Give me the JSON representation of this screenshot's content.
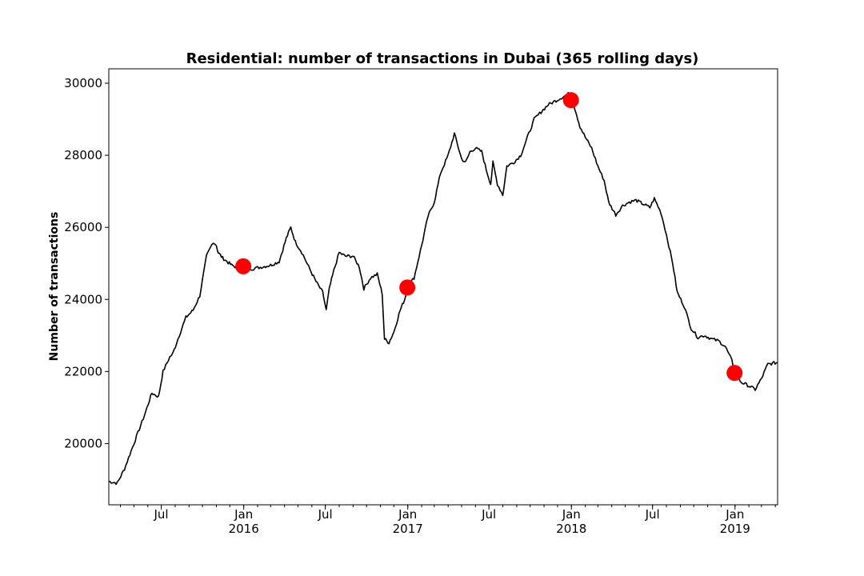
{
  "chart_data": {
    "type": "line",
    "title": "Residential: number of transactions in Dubai (365 rolling days)",
    "xlabel": "",
    "ylabel": "Number of transactions",
    "xlim": [
      "2015-03-06",
      "2019-04-06"
    ],
    "ylim": [
      18300,
      30400
    ],
    "grid": false,
    "yticks": [
      20000,
      22000,
      24000,
      26000,
      28000,
      30000
    ],
    "xticks": [
      {
        "date": "2015-07-01",
        "label": "Jul",
        "year": ""
      },
      {
        "date": "2016-01-01",
        "label": "Jan",
        "year": "2016"
      },
      {
        "date": "2016-07-01",
        "label": "Jul",
        "year": ""
      },
      {
        "date": "2017-01-01",
        "label": "Jan",
        "year": "2017"
      },
      {
        "date": "2017-07-01",
        "label": "Jul",
        "year": ""
      },
      {
        "date": "2018-01-01",
        "label": "Jan",
        "year": "2018"
      },
      {
        "date": "2018-07-01",
        "label": "Jul",
        "year": ""
      },
      {
        "date": "2019-01-01",
        "label": "Jan",
        "year": "2019"
      }
    ],
    "series": [
      {
        "color": "#000000",
        "x": [
          "2015-03-06",
          "2015-03-25",
          "2015-04-10",
          "2015-04-25",
          "2015-05-10",
          "2015-05-25",
          "2015-06-10",
          "2015-06-25",
          "2015-07-05",
          "2015-07-20",
          "2015-07-27",
          "2015-08-10",
          "2015-08-25",
          "2015-09-10",
          "2015-09-25",
          "2015-10-10",
          "2015-10-25",
          "2015-11-01",
          "2015-11-05",
          "2015-11-15",
          "2015-11-25",
          "2015-12-05",
          "2015-12-15",
          "2015-12-25",
          "2016-01-01",
          "2016-01-20",
          "2016-02-10",
          "2016-03-01",
          "2016-03-20",
          "2016-04-05",
          "2016-04-15",
          "2016-04-25",
          "2016-05-10",
          "2016-05-25",
          "2016-06-10",
          "2016-06-25",
          "2016-07-03",
          "2016-07-10",
          "2016-07-20",
          "2016-08-01",
          "2016-08-15",
          "2016-09-01",
          "2016-09-15",
          "2016-09-25",
          "2016-10-10",
          "2016-10-25",
          "2016-11-05",
          "2016-11-10",
          "2016-11-20",
          "2016-12-01",
          "2016-12-15",
          "2016-12-25",
          "2017-01-01",
          "2017-01-15",
          "2017-02-01",
          "2017-02-15",
          "2017-03-01",
          "2017-03-15",
          "2017-04-01",
          "2017-04-15",
          "2017-05-01",
          "2017-05-10",
          "2017-05-20",
          "2017-06-01",
          "2017-06-15",
          "2017-06-25",
          "2017-07-05",
          "2017-07-10",
          "2017-07-20",
          "2017-08-01",
          "2017-08-10",
          "2017-08-25",
          "2017-09-10",
          "2017-09-25",
          "2017-10-10",
          "2017-10-25",
          "2017-11-10",
          "2017-11-25",
          "2017-12-10",
          "2017-12-25",
          "2018-01-01",
          "2018-01-10",
          "2018-01-20",
          "2018-02-01",
          "2018-02-15",
          "2018-03-01",
          "2018-03-15",
          "2018-03-25",
          "2018-04-10",
          "2018-04-25",
          "2018-05-10",
          "2018-05-25",
          "2018-06-10",
          "2018-06-25",
          "2018-07-05",
          "2018-07-20",
          "2018-08-01",
          "2018-08-15",
          "2018-08-25",
          "2018-09-10",
          "2018-09-25",
          "2018-10-10",
          "2018-10-25",
          "2018-11-10",
          "2018-11-25",
          "2018-12-10",
          "2018-12-25",
          "2019-01-01",
          "2019-01-15",
          "2019-02-01",
          "2019-02-15",
          "2019-03-01",
          "2019-03-15",
          "2019-04-06"
        ],
        "values": [
          18950,
          18900,
          19300,
          19800,
          20300,
          20800,
          21400,
          21300,
          22000,
          22400,
          22500,
          23000,
          23500,
          23700,
          24100,
          25200,
          25600,
          25500,
          25300,
          25150,
          25050,
          24950,
          24900,
          24880,
          24900,
          24850,
          24900,
          24950,
          25050,
          25700,
          26000,
          25600,
          25300,
          24900,
          24500,
          24200,
          23700,
          24300,
          24800,
          25300,
          25200,
          25200,
          24900,
          24300,
          24600,
          24700,
          24150,
          22900,
          22800,
          23100,
          23700,
          24000,
          24350,
          24600,
          25500,
          26300,
          26700,
          27500,
          28000,
          28600,
          27900,
          27800,
          28100,
          28200,
          28100,
          27600,
          27200,
          27800,
          27200,
          26900,
          27700,
          27800,
          28000,
          28500,
          29000,
          29200,
          29400,
          29500,
          29600,
          29700,
          29600,
          29250,
          28800,
          28500,
          28200,
          27700,
          27300,
          26700,
          26350,
          26600,
          26700,
          26750,
          26650,
          26550,
          26800,
          26400,
          25800,
          25000,
          24200,
          23800,
          23200,
          22950,
          23000,
          22900,
          22850,
          22700,
          22300,
          21950,
          21700,
          21600,
          21500,
          21800,
          22200,
          22250
        ]
      }
    ],
    "markers": [
      {
        "x": "2015-12-31",
        "y": 24920,
        "color": "#ff0000"
      },
      {
        "x": "2016-12-31",
        "y": 24330,
        "color": "#ff0000"
      },
      {
        "x": "2017-12-31",
        "y": 29530,
        "color": "#ff0000"
      },
      {
        "x": "2018-12-31",
        "y": 21960,
        "color": "#ff0000"
      }
    ]
  }
}
